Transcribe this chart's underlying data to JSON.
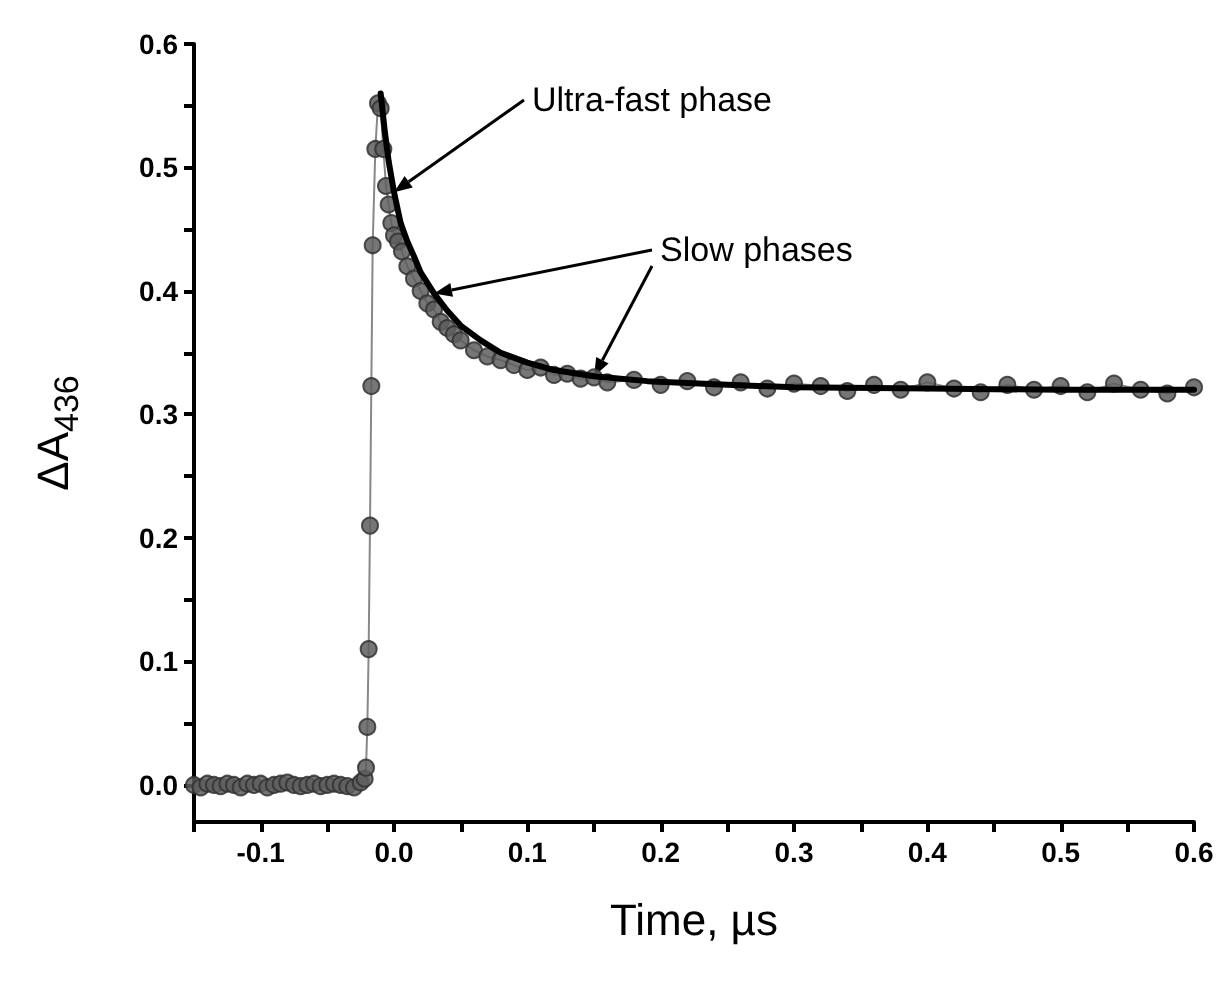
{
  "chart_data": {
    "type": "line",
    "xlabel": "Time, µs",
    "ylabel": "ΔA$_{436}$",
    "xlim": [
      -0.15,
      0.6
    ],
    "xticks": [
      {
        "value": -0.15,
        "label": null
      },
      {
        "value": -0.1,
        "label": "-0.1"
      },
      {
        "value": -0.05,
        "label": null
      },
      {
        "value": 0,
        "label": "0.0"
      },
      {
        "value": 0.05,
        "label": null
      },
      0.1,
      {
        "value": 0.15,
        "label": null
      },
      0.2,
      {
        "value": 0.25,
        "label": null
      },
      0.3,
      {
        "value": 0.35,
        "label": null
      },
      0.4,
      {
        "value": 0.45,
        "label": null
      },
      0.5,
      {
        "value": 0.55,
        "label": null
      },
      0.6
    ],
    "ylim": [
      -0.03,
      0.6
    ],
    "yticks": [
      {
        "value": 0,
        "label": "0.0"
      },
      {
        "value": 0.05,
        "label": null
      },
      0.1,
      {
        "value": 0.15,
        "label": null
      },
      0.2,
      {
        "value": 0.25,
        "label": null
      },
      0.3,
      {
        "value": 0.35,
        "label": null
      },
      0.4,
      {
        "value": 0.45,
        "label": null
      },
      0.5,
      {
        "value": 0.55,
        "label": null
      },
      0.6
    ],
    "grid": false,
    "series": [
      {
        "color": "#5e5e5e",
        "marker": "circle",
        "x": [
          -0.15,
          -0.145,
          -0.14,
          -0.135,
          -0.13,
          -0.125,
          -0.12,
          -0.115,
          -0.11,
          -0.105,
          -0.1,
          -0.095,
          -0.09,
          -0.085,
          -0.08,
          -0.075,
          -0.07,
          -0.065,
          -0.06,
          -0.055,
          -0.05,
          -0.045,
          -0.04,
          -0.035,
          -0.03,
          -0.025,
          -0.022,
          -0.021,
          -0.02,
          -0.019,
          -0.018,
          -0.017,
          -0.016,
          -0.014,
          -0.012,
          -0.01,
          -0.008,
          -0.006,
          -0.004,
          -0.002,
          0,
          0.003,
          0.006,
          0.01,
          0.015,
          0.02,
          0.025,
          0.03,
          0.035,
          0.04,
          0.045,
          0.05,
          0.06,
          0.07,
          0.08,
          0.09,
          0.1,
          0.11,
          0.12,
          0.13,
          0.14,
          0.15,
          0.16,
          0.18,
          0.2,
          0.22,
          0.24,
          0.26,
          0.28,
          0.3,
          0.32,
          0.34,
          0.36,
          0.38,
          0.4,
          0.42,
          0.44,
          0.46,
          0.48,
          0.5,
          0.52,
          0.54,
          0.56,
          0.58,
          0.6
        ],
        "values": [
          0,
          -0.002,
          0.001,
          0,
          -0.001,
          0.001,
          0,
          -0.002,
          0.001,
          0,
          0.001,
          -0.002,
          0,
          0.001,
          0.002,
          0,
          -0.001,
          0,
          0.001,
          -0.001,
          0,
          0.001,
          0,
          -0.001,
          -0.002,
          0.002,
          0.005,
          0.014,
          0.047,
          0.11,
          0.21,
          0.323,
          0.437,
          0.515,
          0.552,
          0.548,
          0.515,
          0.485,
          0.47,
          0.455,
          0.445,
          0.44,
          0.432,
          0.42,
          0.41,
          0.4,
          0.39,
          0.385,
          0.375,
          0.37,
          0.365,
          0.36,
          0.352,
          0.347,
          0.344,
          0.34,
          0.336,
          0.338,
          0.332,
          0.333,
          0.329,
          0.33,
          0.326,
          0.328,
          0.324,
          0.327,
          0.322,
          0.326,
          0.321,
          0.325,
          0.323,
          0.319,
          0.324,
          0.32,
          0.326,
          0.321,
          0.318,
          0.324,
          0.32,
          0.323,
          0.318,
          0.325,
          0.32,
          0.317,
          0.322
        ]
      },
      {
        "color": "#000000",
        "marker": "none",
        "x": [
          -0.01,
          -0.007,
          -0.004,
          0,
          0.005,
          0.01,
          0.015,
          0.02,
          0.03,
          0.04,
          0.05,
          0.065,
          0.08,
          0.1,
          0.12,
          0.15,
          0.19,
          0.25,
          0.3,
          0.4,
          0.5,
          0.6
        ],
        "values": [
          0.56,
          0.53,
          0.505,
          0.48,
          0.455,
          0.44,
          0.428,
          0.415,
          0.398,
          0.384,
          0.372,
          0.36,
          0.35,
          0.342,
          0.336,
          0.331,
          0.327,
          0.324,
          0.322,
          0.321,
          0.32,
          0.32
        ]
      }
    ],
    "annotations": [
      {
        "text": "Ultra-fast phase",
        "x": 0,
        "y": 0.48
      },
      {
        "text": "Slow phases",
        "x": 0.03,
        "y": 0.398
      }
    ]
  }
}
